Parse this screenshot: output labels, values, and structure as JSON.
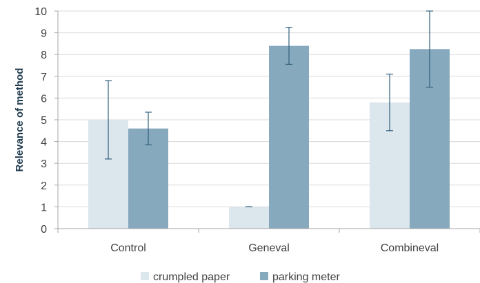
{
  "chart_data": {
    "type": "bar",
    "title": "",
    "xlabel": "",
    "ylabel": "Relevance of method",
    "ylim": [
      0,
      10
    ],
    "yticks": [
      0,
      1,
      2,
      3,
      4,
      5,
      6,
      7,
      8,
      9,
      10
    ],
    "grid": true,
    "legend_position": "bottom",
    "categories": [
      "Control",
      "Geneval",
      "Combineval"
    ],
    "series": [
      {
        "name": "crumpled paper",
        "color": "#dce6ed",
        "values": [
          5.0,
          1.0,
          5.8
        ],
        "error": [
          1.8,
          0.0,
          1.3
        ]
      },
      {
        "name": "parking meter",
        "color": "#87a9bd",
        "values": [
          4.6,
          8.4,
          8.25
        ],
        "error": [
          0.75,
          0.85,
          1.75
        ]
      }
    ]
  }
}
